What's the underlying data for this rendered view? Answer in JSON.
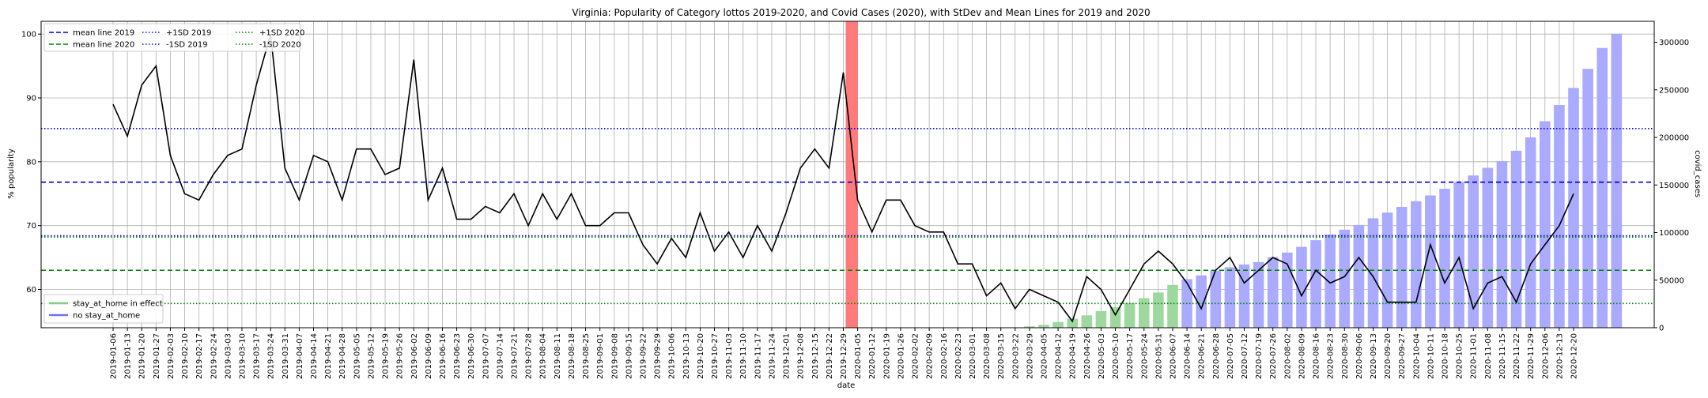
{
  "chart_data": {
    "type": "line",
    "title": "Virginia: Popularity of Category lottos 2019-2020, and Covid Cases (2020), with StDev and Mean Lines for 2019 and 2020",
    "xlabel": "date",
    "ylabel_left": "% popularity",
    "ylabel_right": "covid_cases",
    "ylim_left": [
      54,
      102
    ],
    "ylim_right": [
      0,
      322000
    ],
    "yticks_left": [
      60,
      70,
      80,
      90,
      100
    ],
    "yticks_right": [
      0,
      50000,
      100000,
      150000,
      200000,
      250000,
      300000
    ],
    "yticks_right_labels": [
      "0",
      "50000",
      "100000",
      "150000",
      "200000",
      "250000",
      "300000"
    ],
    "grid": true,
    "dates": [
      "2019-01-06",
      "2019-01-13",
      "2019-01-20",
      "2019-01-27",
      "2019-02-03",
      "2019-02-10",
      "2019-02-17",
      "2019-02-24",
      "2019-03-03",
      "2019-03-10",
      "2019-03-17",
      "2019-03-24",
      "2019-03-31",
      "2019-04-07",
      "2019-04-14",
      "2019-04-21",
      "2019-04-28",
      "2019-05-05",
      "2019-05-12",
      "2019-05-19",
      "2019-05-26",
      "2019-06-02",
      "2019-06-09",
      "2019-06-16",
      "2019-06-23",
      "2019-06-30",
      "2019-07-07",
      "2019-07-14",
      "2019-07-21",
      "2019-07-28",
      "2019-08-04",
      "2019-08-11",
      "2019-08-18",
      "2019-08-25",
      "2019-09-01",
      "2019-09-08",
      "2019-09-15",
      "2019-09-22",
      "2019-09-29",
      "2019-10-06",
      "2019-10-13",
      "2019-10-20",
      "2019-10-27",
      "2019-11-03",
      "2019-11-10",
      "2019-11-17",
      "2019-11-24",
      "2019-12-01",
      "2019-12-08",
      "2019-12-15",
      "2019-12-22",
      "2019-12-29",
      "2020-01-05",
      "2020-01-12",
      "2020-01-19",
      "2020-01-26",
      "2020-02-02",
      "2020-02-09",
      "2020-02-16",
      "2020-02-23",
      "2020-03-01",
      "2020-03-08",
      "2020-03-15",
      "2020-03-22",
      "2020-03-29",
      "2020-04-05",
      "2020-04-12",
      "2020-04-19",
      "2020-04-26",
      "2020-05-03",
      "2020-05-10",
      "2020-05-17",
      "2020-05-24",
      "2020-05-31",
      "2020-06-07",
      "2020-06-14",
      "2020-06-21",
      "2020-06-28",
      "2020-07-05",
      "2020-07-12",
      "2020-07-19",
      "2020-07-26",
      "2020-08-02",
      "2020-08-09",
      "2020-08-16",
      "2020-08-23",
      "2020-08-30",
      "2020-09-06",
      "2020-09-13",
      "2020-09-20",
      "2020-09-27",
      "2020-10-04",
      "2020-10-11",
      "2020-10-18",
      "2020-10-25",
      "2020-11-01",
      "2020-11-08",
      "2020-11-15",
      "2020-11-22",
      "2020-11-29",
      "2020-12-06",
      "2020-12-13",
      "2020-12-20"
    ],
    "popularity": [
      89,
      84,
      92,
      95,
      81,
      75,
      74,
      78,
      81,
      82,
      92,
      100,
      79,
      74,
      81,
      80,
      74,
      82,
      82,
      78,
      79,
      96,
      74,
      79,
      71,
      71,
      73,
      72,
      75,
      70,
      75,
      71,
      75,
      70,
      70,
      72,
      72,
      67,
      64,
      68,
      65,
      72,
      66,
      69,
      65,
      70,
      66,
      72,
      79,
      82,
      79,
      94,
      74,
      69,
      74,
      74,
      70,
      69,
      69,
      64,
      64,
      59,
      61,
      57,
      60,
      59,
      58,
      55,
      62,
      60,
      56,
      60,
      64,
      66,
      64,
      61,
      57,
      63,
      65,
      61,
      63,
      65,
      64,
      59,
      63,
      61,
      62,
      65,
      62,
      58,
      58,
      58,
      67,
      61,
      65,
      57,
      61,
      62,
      58,
      64,
      67,
      70,
      75
    ],
    "covid_cases": [
      null,
      null,
      null,
      null,
      null,
      null,
      null,
      null,
      null,
      null,
      null,
      null,
      null,
      null,
      null,
      null,
      null,
      null,
      null,
      null,
      null,
      null,
      null,
      null,
      null,
      null,
      null,
      null,
      null,
      null,
      null,
      null,
      null,
      null,
      null,
      null,
      null,
      null,
      null,
      null,
      null,
      null,
      null,
      null,
      null,
      null,
      null,
      null,
      null,
      null,
      null,
      null,
      null,
      null,
      null,
      null,
      null,
      null,
      null,
      null,
      null,
      null,
      null,
      null,
      1500,
      3000,
      6000,
      9500,
      13000,
      17500,
      21500,
      26000,
      31000,
      37000,
      45000,
      51000,
      55000,
      60000,
      63500,
      66500,
      69000,
      74000,
      79000,
      85000,
      92000,
      98000,
      103000,
      108000,
      115000,
      121000,
      127000,
      133000,
      139000,
      146000,
      153000,
      160000,
      168000,
      175000,
      186000,
      200000,
      217000,
      234000,
      252000,
      272000,
      294000,
      309000
    ],
    "highlight_date": "2019-12-29",
    "stay_at_home_range": [
      "2020-03-29",
      "2020-06-07"
    ],
    "mean_2019": 76.8,
    "mean_2020": 63,
    "sd_plus_2019": 85.2,
    "sd_minus_2019": 68.4,
    "sd_plus_2020": 68.2,
    "sd_minus_2020": 57.8,
    "colors": {
      "popularity_line": "#000000",
      "mean_2019": "#0000cc",
      "mean_2020": "#008000",
      "sd_2019": "#0000ff",
      "sd_2020": "#008000",
      "bar_stay_at_home": "#9fd89f",
      "bar_no_stay_at_home": "#aaaaff",
      "highlight": "#ff7b7b",
      "grid": "#b0b0b0"
    },
    "legend_top": {
      "placement": "top-left",
      "entries": [
        {
          "label": "mean line 2019",
          "color": "#0000cc",
          "style": "dashed"
        },
        {
          "label": "mean line 2020",
          "color": "#008000",
          "style": "dashed"
        },
        {
          "label": "+1SD 2019",
          "color": "#0000ff",
          "style": "dotted"
        },
        {
          "label": "-1SD 2019",
          "color": "#0000ff",
          "style": "dotted"
        },
        {
          "label": "+1SD 2020",
          "color": "#008000",
          "style": "dotted"
        },
        {
          "label": "-1SD 2020",
          "color": "#008000",
          "style": "dotted"
        }
      ]
    },
    "legend_bottom": {
      "placement": "bottom-left",
      "entries": [
        {
          "label": "stay_at_home in effect",
          "color": "#7fcf7f",
          "style": "solid"
        },
        {
          "label": "no stay_at_home",
          "color": "#7070ff",
          "style": "solid"
        }
      ]
    }
  }
}
